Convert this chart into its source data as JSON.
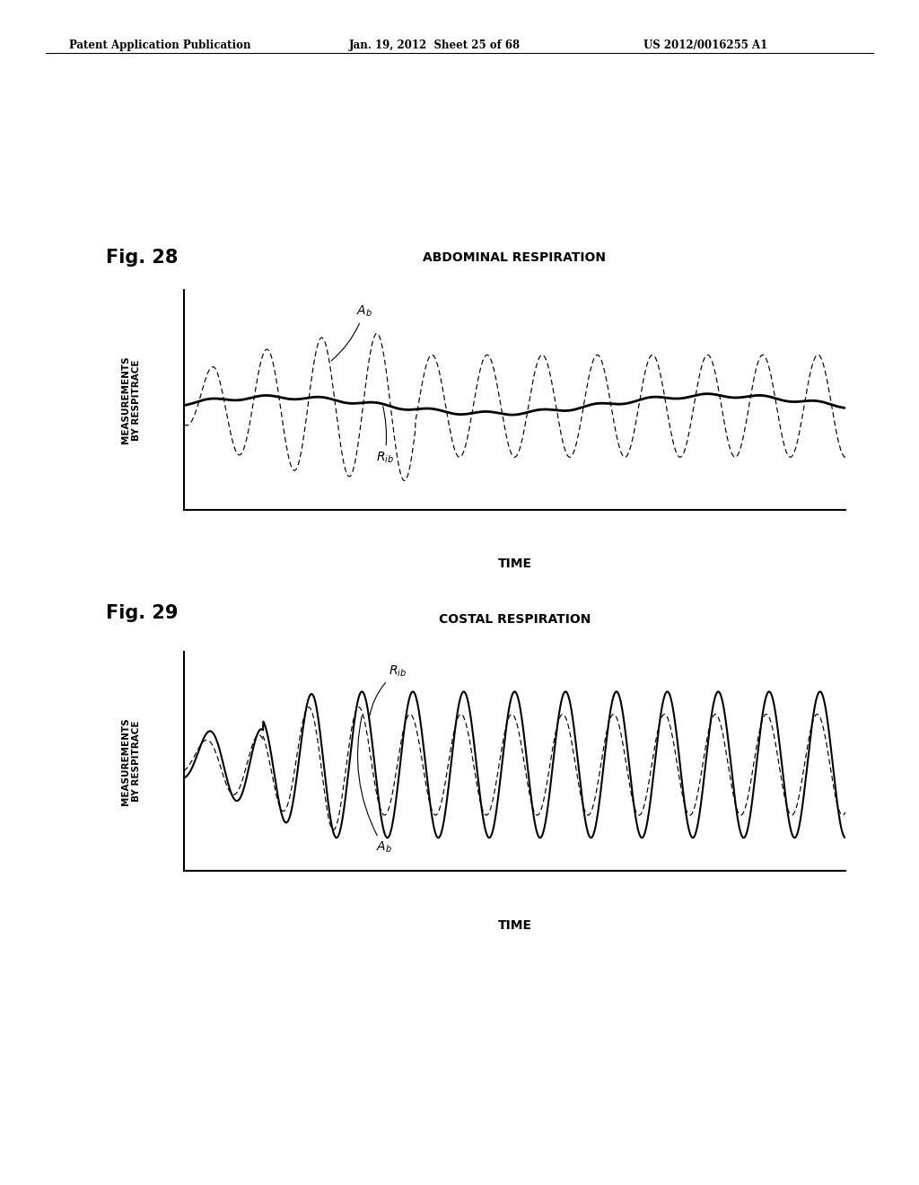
{
  "header_left": "Patent Application Publication",
  "header_mid": "Jan. 19, 2012  Sheet 25 of 68",
  "header_right": "US 2012/0016255 A1",
  "fig28_label": "Fig. 28",
  "fig29_label": "Fig. 29",
  "title28": "ABDOMINAL RESPIRATION",
  "title29": "COSTAL RESPIRATION",
  "ylabel": "MEASUREMENTS\nBY RESPITRACE",
  "xlabel": "TIME",
  "background": "#ffffff",
  "line_color": "#000000"
}
